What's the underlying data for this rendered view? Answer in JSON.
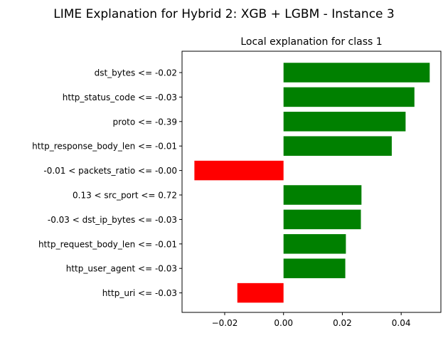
{
  "chart_data": {
    "type": "bar",
    "orientation": "horizontal",
    "suptitle": "LIME Explanation for Hybrid 2: XGB + LGBM - Instance 3",
    "title": "Local explanation for class 1",
    "xlabel": "",
    "ylabel": "",
    "xlim": [
      -0.0345,
      0.0535
    ],
    "xticks": [
      -0.02,
      0.0,
      0.02,
      0.04
    ],
    "xtick_labels": [
      "−0.02",
      "0.00",
      "0.02",
      "0.04"
    ],
    "grid": false,
    "legend": "none",
    "categories": [
      "dst_bytes <= -0.02",
      "http_status_code <= -0.03",
      "proto <= -0.39",
      "http_response_body_len <= -0.01",
      "-0.01 < packets_ratio <= -0.00",
      "0.13 < src_port <= 0.72",
      "-0.03 < dst_ip_bytes <= -0.03",
      "http_request_body_len <= -0.01",
      "http_user_agent <= -0.03",
      "http_uri <= -0.03"
    ],
    "values": [
      0.0497,
      0.0445,
      0.0415,
      0.0368,
      -0.0303,
      0.0265,
      0.0263,
      0.0212,
      0.021,
      -0.0157
    ],
    "colors": {
      "positive": "#008000",
      "negative": "#ff0000"
    }
  }
}
